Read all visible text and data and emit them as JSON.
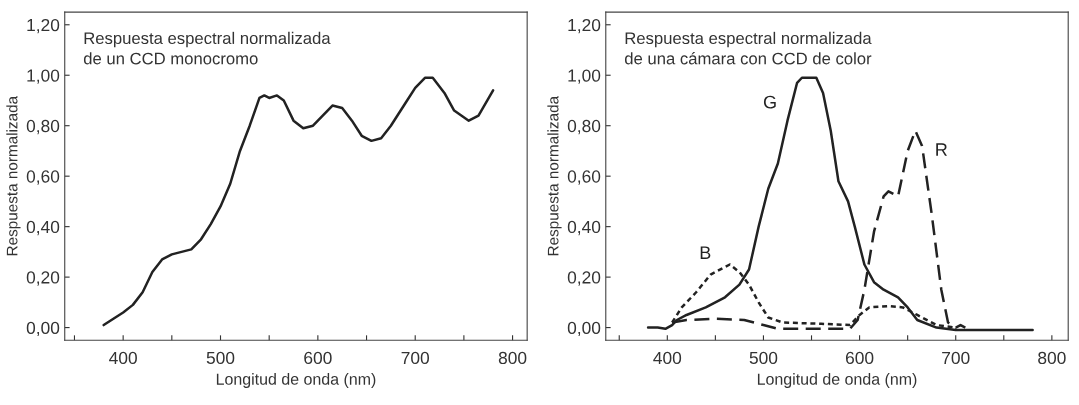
{
  "chart_data": [
    {
      "type": "line",
      "title": "Respuesta espectral normalizada\nde un CCD monocromo",
      "xlabel": "Longitud de onda (nm)",
      "ylabel": "Respuesta normalizada",
      "xlim": [
        340,
        815
      ],
      "ylim": [
        -0.05,
        1.25
      ],
      "xticks": [
        {
          "value": 350,
          "label": null
        },
        400,
        {
          "value": 450,
          "label": null
        },
        500,
        {
          "value": 550,
          "label": null
        },
        600,
        {
          "value": 650,
          "label": null
        },
        700,
        {
          "value": 750,
          "label": null
        },
        800
      ],
      "yticks": [
        {
          "value": 0,
          "label": "0,00"
        },
        {
          "value": 0.2,
          "label": "0,20"
        },
        {
          "value": 0.4,
          "label": "0,40"
        },
        {
          "value": 0.6,
          "label": "0,60"
        },
        {
          "value": 0.8,
          "label": "0,80"
        },
        {
          "value": 1.0,
          "label": "1,00"
        },
        {
          "value": 1.2,
          "label": "1,20"
        }
      ],
      "grid": false,
      "legend": false,
      "marker": "none",
      "series": [
        {
          "color": "#222222",
          "line_style": "solid",
          "x": [
            380,
            400,
            410,
            420,
            430,
            440,
            450,
            460,
            470,
            480,
            490,
            500,
            510,
            520,
            530,
            540,
            545,
            550,
            558,
            565,
            575,
            585,
            595,
            605,
            615,
            625,
            635,
            645,
            655,
            665,
            675,
            690,
            700,
            710,
            718,
            730,
            740,
            755,
            765,
            780
          ],
          "values": [
            0.01,
            0.06,
            0.09,
            0.14,
            0.22,
            0.27,
            0.29,
            0.3,
            0.31,
            0.35,
            0.41,
            0.48,
            0.57,
            0.7,
            0.8,
            0.91,
            0.92,
            0.91,
            0.92,
            0.9,
            0.82,
            0.79,
            0.8,
            0.84,
            0.88,
            0.87,
            0.82,
            0.76,
            0.74,
            0.75,
            0.8,
            0.89,
            0.95,
            0.99,
            0.99,
            0.93,
            0.86,
            0.82,
            0.84,
            0.94
          ]
        }
      ]
    },
    {
      "type": "line",
      "title": "Respuesta espectral normalizada\nde una cámara con CCD de color",
      "xlabel": "Longitud de onda (nm)",
      "ylabel": "Respuesta normalizada",
      "xlim": [
        336,
        817
      ],
      "ylim": [
        -0.05,
        1.25
      ],
      "xticks": [
        {
          "value": 350,
          "label": null
        },
        400,
        {
          "value": 450,
          "label": null
        },
        500,
        {
          "value": 550,
          "label": null
        },
        600,
        {
          "value": 650,
          "label": null
        },
        700,
        {
          "value": 750,
          "label": null
        },
        800
      ],
      "yticks": [
        {
          "value": 0,
          "label": "0,00"
        },
        {
          "value": 0.2,
          "label": "0,20"
        },
        {
          "value": 0.4,
          "label": "0,40"
        },
        {
          "value": 0.6,
          "label": "0,60"
        },
        {
          "value": 0.8,
          "label": "0,80"
        },
        {
          "value": 1.0,
          "label": "1,00"
        },
        {
          "value": 1.2,
          "label": "1,20"
        }
      ],
      "grid": false,
      "legend": false,
      "marker": "none",
      "series": [
        {
          "name": "G",
          "color": "#222222",
          "line_style": "solid",
          "x": [
            380,
            390,
            398,
            405,
            410,
            420,
            440,
            460,
            475,
            485,
            495,
            505,
            515,
            525,
            535,
            540,
            555,
            562,
            570,
            578,
            588,
            595,
            605,
            615,
            625,
            640,
            650,
            660,
            680,
            700,
            780
          ],
          "values": [
            0.0,
            0.0,
            -0.005,
            0.01,
            0.03,
            0.05,
            0.08,
            0.12,
            0.17,
            0.23,
            0.4,
            0.55,
            0.65,
            0.82,
            0.97,
            0.99,
            0.99,
            0.93,
            0.78,
            0.58,
            0.5,
            0.4,
            0.25,
            0.18,
            0.15,
            0.12,
            0.08,
            0.03,
            0.0,
            -0.01,
            -0.01
          ]
        },
        {
          "name": "B",
          "color": "#222222",
          "line_style": "dotted",
          "x": [
            405,
            415,
            430,
            445,
            465,
            475,
            485,
            495,
            505,
            520,
            560,
            590,
            600,
            610,
            630,
            645,
            660,
            680,
            700
          ],
          "values": [
            0.02,
            0.08,
            0.14,
            0.21,
            0.25,
            0.22,
            0.17,
            0.1,
            0.04,
            0.02,
            0.015,
            0.01,
            0.05,
            0.08,
            0.085,
            0.08,
            0.05,
            0.01,
            0.0
          ]
        },
        {
          "name": "R",
          "color": "#222222",
          "line_style": "dashed",
          "x": [
            405,
            420,
            450,
            480,
            500,
            515,
            590,
            598,
            605,
            615,
            625,
            630,
            640,
            650,
            658,
            665,
            675,
            685,
            692,
            700,
            705,
            710
          ],
          "values": [
            0.02,
            0.03,
            0.035,
            0.03,
            0.01,
            -0.005,
            -0.005,
            0.03,
            0.15,
            0.38,
            0.52,
            0.54,
            0.52,
            0.7,
            0.78,
            0.72,
            0.45,
            0.15,
            0.02,
            0.0,
            0.01,
            0.0
          ]
        }
      ]
    }
  ]
}
